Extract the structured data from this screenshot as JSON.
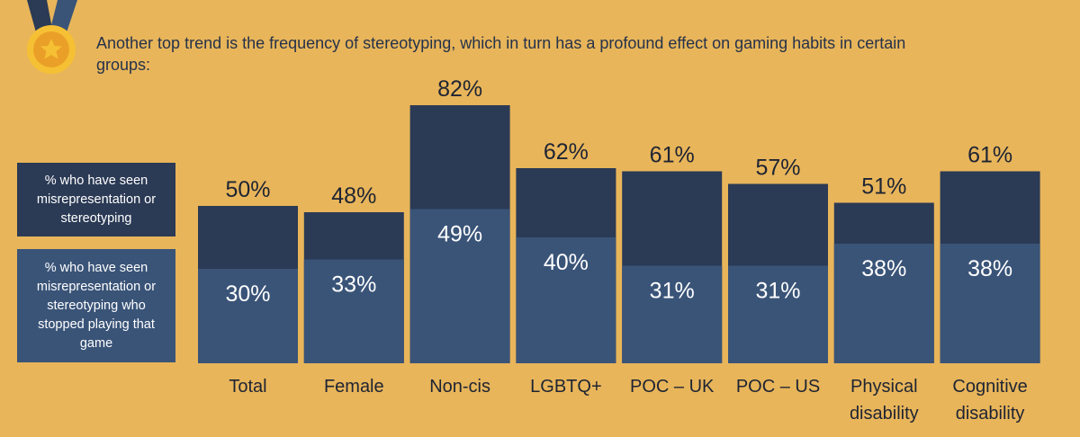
{
  "headline": "Another top trend is the frequency of stereotyping, which in turn has a profound effect on gaming habits in certain groups:",
  "medal_icon": "medal-icon",
  "chart_data": {
    "type": "bar",
    "title": "",
    "xlabel": "",
    "ylabel": "",
    "ylim": [
      0,
      100
    ],
    "grid": false,
    "legend_position": "left",
    "categories": [
      "Total",
      "Female",
      "Non-cis",
      "LGBTQ+",
      "POC – UK",
      "POC – US",
      "Physical disability",
      "Cognitive disability"
    ],
    "category_lines": [
      [
        "Total"
      ],
      [
        "Female"
      ],
      [
        "Non-cis"
      ],
      [
        "LGBTQ+"
      ],
      [
        "POC – UK"
      ],
      [
        "POC – US"
      ],
      [
        "Physical",
        "disability"
      ],
      [
        "Cognitive",
        "disability"
      ]
    ],
    "series": [
      {
        "name": "% who have seen misrepresentation or stereotyping",
        "values": [
          50,
          48,
          82,
          62,
          61,
          57,
          51,
          61
        ],
        "labels": [
          "50%",
          "48%",
          "82%",
          "62%",
          "61%",
          "57%",
          "51%",
          "61%"
        ],
        "color": "#2B3A55"
      },
      {
        "name": "% who have seen misrepresentation or stereotyping who stopped playing that game",
        "values": [
          30,
          33,
          49,
          40,
          31,
          31,
          38,
          38
        ],
        "labels": [
          "30%",
          "33%",
          "49%",
          "40%",
          "31%",
          "31%",
          "38%",
          "38%"
        ],
        "color": "#3A5478"
      }
    ]
  }
}
